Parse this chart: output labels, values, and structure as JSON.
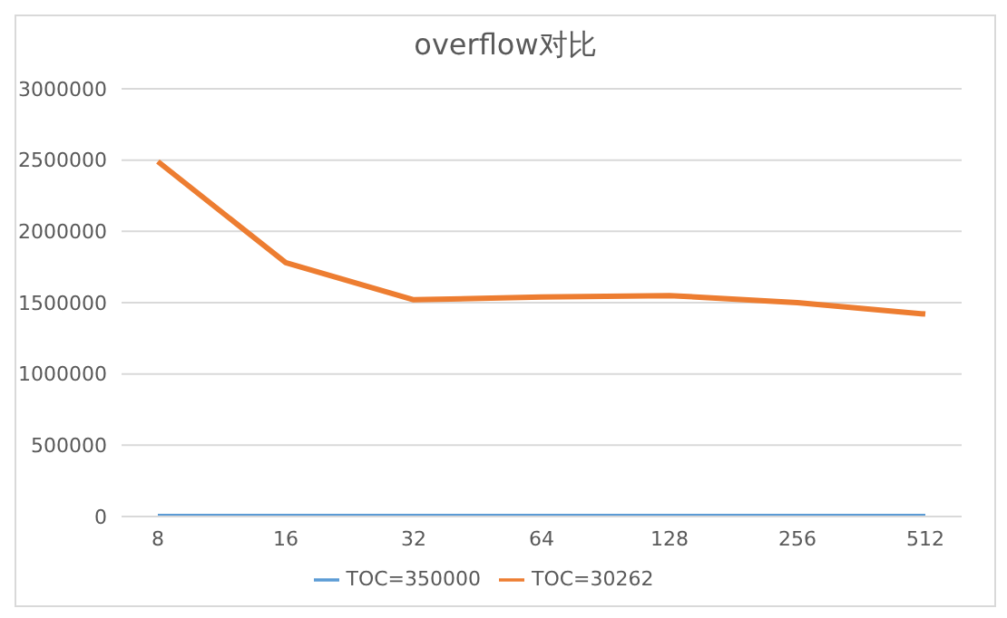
{
  "chart_data": {
    "type": "line",
    "title": "overflow对比",
    "categories": [
      "8",
      "16",
      "32",
      "64",
      "128",
      "256",
      "512"
    ],
    "series": [
      {
        "name": "TOC=350000",
        "color": "#5b9bd5",
        "values": [
          0,
          0,
          0,
          0,
          0,
          0,
          0
        ]
      },
      {
        "name": "TOC=30262",
        "color": "#ed7d31",
        "values": [
          2490000,
          1780000,
          1520000,
          1540000,
          1550000,
          1500000,
          1420000
        ]
      }
    ],
    "ylim": [
      0,
      3000000
    ],
    "yticks": [
      0,
      500000,
      1000000,
      1500000,
      2000000,
      2500000,
      3000000
    ],
    "grid": "y",
    "legend": "bottom",
    "marker": "none"
  }
}
